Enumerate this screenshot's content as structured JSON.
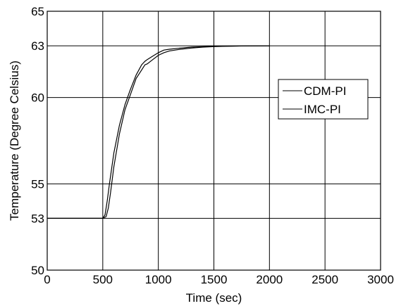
{
  "chart_data": {
    "type": "line",
    "title": "",
    "xlabel": "Time (sec)",
    "ylabel": "Temperature (Degree Celsius)",
    "xlim": [
      0,
      3000
    ],
    "ylim": [
      50,
      65
    ],
    "xticks": [
      0,
      500,
      1000,
      1500,
      2000,
      2500,
      3000
    ],
    "yticks": [
      50,
      53,
      55,
      60,
      63,
      65
    ],
    "grid": true,
    "legend_position": "right",
    "series": [
      {
        "name": "CDM-PI",
        "color": "#000000",
        "x": [
          0,
          500,
          520,
          540,
          560,
          600,
          650,
          700,
          750,
          800,
          850,
          880,
          900,
          950,
          1000,
          1050,
          1100,
          1200,
          1300,
          1400,
          1500,
          1600,
          1800,
          2000
        ],
        "y": [
          53,
          53,
          53.2,
          54.0,
          55.0,
          56.8,
          58.4,
          59.6,
          60.5,
          61.3,
          61.9,
          62.1,
          62.2,
          62.4,
          62.6,
          62.75,
          62.8,
          62.87,
          62.92,
          62.95,
          62.97,
          62.98,
          62.99,
          63
        ]
      },
      {
        "name": "IMC-PI",
        "color": "#000000",
        "x": [
          0,
          500,
          530,
          550,
          570,
          600,
          650,
          700,
          750,
          800,
          850,
          880,
          900,
          950,
          1000,
          1050,
          1100,
          1200,
          1300,
          1400,
          1500,
          1600,
          1800,
          2000
        ],
        "y": [
          53,
          53,
          53.1,
          53.6,
          54.5,
          56.0,
          57.9,
          59.3,
          60.2,
          61.1,
          61.6,
          61.9,
          61.95,
          62.2,
          62.45,
          62.6,
          62.7,
          62.8,
          62.87,
          62.92,
          62.95,
          62.97,
          62.99,
          63
        ]
      }
    ]
  }
}
